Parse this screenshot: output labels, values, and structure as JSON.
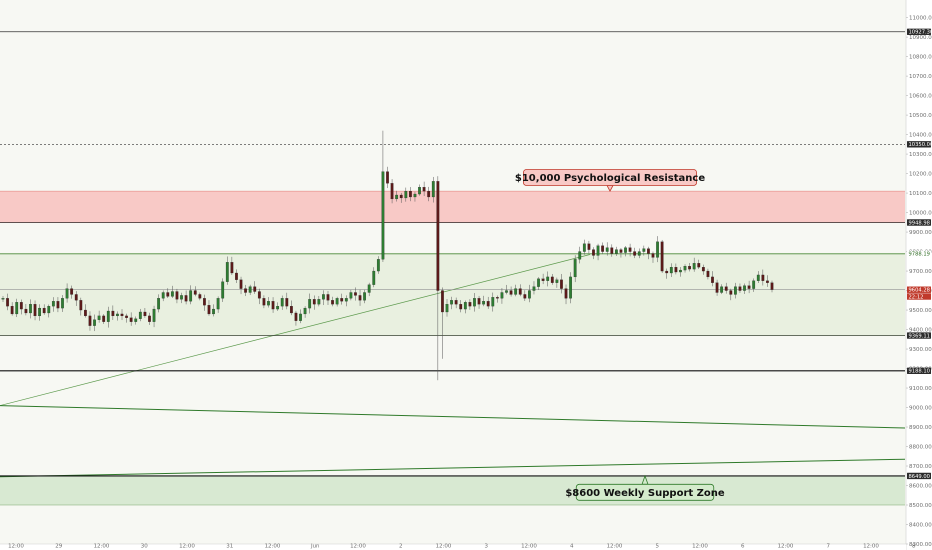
{
  "chart_data": {
    "type": "candlestick",
    "title": "",
    "xlabel": "",
    "ylabel": "",
    "ylim": [
      8300,
      11080
    ],
    "x_tick_labels": [
      "12:00",
      "29",
      "12:00",
      "30",
      "12:00",
      "31",
      "12:00",
      "Jun",
      "12:00",
      "2",
      "12:00",
      "3",
      "12:00",
      "4",
      "12:00",
      "5",
      "12:00",
      "6",
      "12:00",
      "7",
      "12:00",
      "8"
    ],
    "y_tick_labels": [
      "8300.00",
      "8400.00",
      "8500.00",
      "8600.00",
      "8700.00",
      "8800.00",
      "8900.00",
      "9000.00",
      "9100.00",
      "9200.00",
      "9300.00",
      "9400.00",
      "9500.00",
      "9600.00",
      "9700.00",
      "9800.00",
      "9900.00",
      "10000.00",
      "10100.00",
      "10200.00",
      "10300.00",
      "10400.00",
      "10500.00",
      "10600.00",
      "10700.00",
      "10800.00",
      "10900.00",
      "11000.00"
    ],
    "price_levels": [
      {
        "value": 10927.3,
        "label": "10927.30",
        "style": "solid",
        "color": "#333333"
      },
      {
        "value": 10350.0,
        "label": "10350.00",
        "style": "dashed",
        "color": "#333333"
      },
      {
        "value": 9948.98,
        "label": "9948.98",
        "style": "solid",
        "color": "#333333"
      },
      {
        "value": 9788.19,
        "label": "9788.19",
        "style": "solid",
        "color": "#4a8a3a"
      },
      {
        "value": 9604.28,
        "label": "9604.28",
        "style": "solid",
        "color": "#888888"
      },
      {
        "value": 9369.11,
        "label": "9369.11",
        "style": "solid",
        "color": "#333333"
      },
      {
        "value": 9188.1,
        "label": "9188.10",
        "style": "solid",
        "color": "#111111"
      },
      {
        "value": 8649.0,
        "label": "8649.00",
        "style": "solid",
        "color": "#111111"
      }
    ],
    "current_price": {
      "value": "9604.28",
      "countdown": "22:12",
      "color": "#c0392b"
    },
    "zones": [
      {
        "name": "resistance",
        "from": 9950,
        "to": 10110,
        "fill": "#f8c9c6",
        "border": "#e07a73"
      },
      {
        "name": "range",
        "from": 9370,
        "to": 9790,
        "fill": "#e9f0e0",
        "border": "#9ebd88"
      },
      {
        "name": "support",
        "from": 8500,
        "to": 8649,
        "fill": "#d8e9d2",
        "border": "#7aa66c"
      }
    ],
    "trend_lines": [
      {
        "from": [
          0,
          9010
        ],
        "to": [
          590,
          9785
        ],
        "color": "#5d9a4d",
        "width": 0.7
      },
      {
        "from": [
          0,
          9010
        ],
        "to": [
          905,
          8895
        ],
        "color": "#2f7a2a",
        "width": 1.0
      },
      {
        "from": [
          0,
          8645
        ],
        "to": [
          905,
          8735
        ],
        "color": "#2f7a2a",
        "width": 1.0
      }
    ],
    "annotations": [
      {
        "text": "$10,000 Psychological Resistance",
        "price": 10180,
        "pointer_to": 10110,
        "x": 610,
        "fill": "#f8c9c6",
        "border": "#c0392b"
      },
      {
        "text": "$8600 Weekly Support Zone",
        "price": 8565,
        "pointer_to": 8649,
        "x": 645,
        "fill": "#d4ebcc",
        "border": "#2f7a2a"
      }
    ],
    "candle_color_up": "#2e7d32",
    "candle_color_down": "#5c1a1a",
    "candles_close": [
      9560,
      9520,
      9480,
      9540,
      9505,
      9485,
      9530,
      9470,
      9510,
      9485,
      9520,
      9545,
      9510,
      9560,
      9610,
      9580,
      9550,
      9500,
      9470,
      9420,
      9450,
      9470,
      9440,
      9495,
      9470,
      9480,
      9470,
      9460,
      9440,
      9455,
      9490,
      9470,
      9440,
      9505,
      9560,
      9590,
      9570,
      9595,
      9555,
      9575,
      9545,
      9600,
      9580,
      9560,
      9525,
      9480,
      9505,
      9560,
      9645,
      9745,
      9690,
      9655,
      9610,
      9590,
      9620,
      9595,
      9560,
      9525,
      9545,
      9505,
      9520,
      9560,
      9520,
      9485,
      9445,
      9480,
      9510,
      9555,
      9530,
      9555,
      9580,
      9550,
      9530,
      9560,
      9545,
      9560,
      9590,
      9575,
      9550,
      9590,
      9630,
      9700,
      9760,
      10210,
      10150,
      10070,
      10090,
      10075,
      10110,
      10080,
      10095,
      10130,
      10110,
      10080,
      10160,
      9600,
      9490,
      9530,
      9550,
      9530,
      9505,
      9540,
      9520,
      9560,
      9530,
      9545,
      9520,
      9565,
      9560,
      9590,
      9600,
      9580,
      9610,
      9580,
      9560,
      9600,
      9620,
      9660,
      9650,
      9670,
      9640,
      9655,
      9610,
      9560,
      9670,
      9760,
      9800,
      9840,
      9810,
      9780,
      9830,
      9800,
      9820,
      9790,
      9810,
      9795,
      9820,
      9800,
      9780,
      9800,
      9815,
      9790,
      9770,
      9850,
      9700,
      9690,
      9720,
      9695,
      9705,
      9725,
      9710,
      9740,
      9720,
      9700,
      9670,
      9640,
      9590,
      9620,
      9600,
      9580,
      9620,
      9600,
      9625,
      9610,
      9650,
      9680,
      9650,
      9640,
      9605
    ]
  }
}
